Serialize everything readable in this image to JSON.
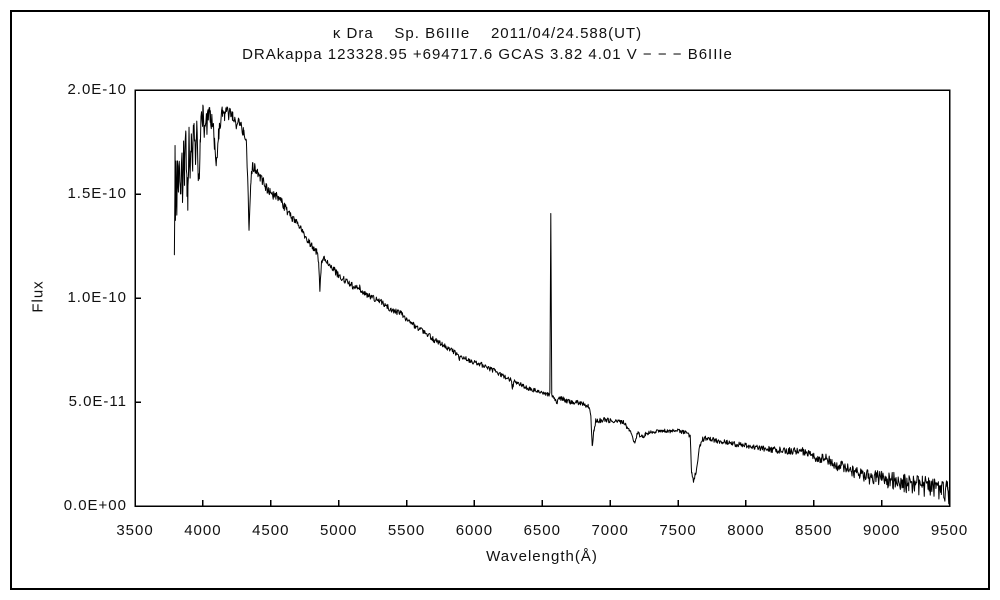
{
  "figure": {
    "title_line1": "κ Dra    Sp. B6IIIe    2011/04/24.588(UT)",
    "title_line2": "DRAkappa 123328.95 +694717.6 GCAS 3.82 4.01 V − − − B6IIIe"
  },
  "chart_data": {
    "type": "line",
    "title": "κ Dra    Sp. B6IIIe    2011/04/24.588(UT)",
    "subtitle": "DRAkappa 123328.95 +694717.6 GCAS 3.82 4.01 V − − − B6IIIe",
    "xlabel": "Wavelength(Å)",
    "ylabel": "Flux",
    "xlim": [
      3500,
      9500
    ],
    "ylim_labels": [
      "0.0E+00",
      "2.0E-10"
    ],
    "grid": false,
    "legend": "none",
    "line_color": "#000000",
    "x_ticks": [
      3500,
      4000,
      4500,
      5000,
      5500,
      6000,
      6500,
      7000,
      7500,
      8000,
      8500,
      9000,
      9500
    ],
    "x_tick_labels": [
      "3500",
      "4000",
      "4500",
      "5000",
      "5500",
      "6000",
      "6500",
      "7000",
      "7500",
      "8000",
      "8500",
      "9000",
      "9500"
    ],
    "y_ticks_flux_1e11": [
      0,
      5,
      10,
      15,
      20
    ],
    "y_tick_labels": [
      "0.0E+00",
      "5.0E-11",
      "1.0E-10",
      "1.5E-10",
      "2.0E-10"
    ],
    "flux_scale": "values below are flux × 1e-11; spectrum runs 3790–9500 Å",
    "series": [
      {
        "name": "kappa Dra spectrum",
        "points": [
          [
            3790,
            13.0
          ],
          [
            3795,
            16.9
          ],
          [
            3798,
            13.2
          ],
          [
            3803,
            16.4
          ],
          [
            3808,
            14.6
          ],
          [
            3813,
            16.6
          ],
          [
            3820,
            15.0
          ],
          [
            3828,
            16.9
          ],
          [
            3835,
            14.2
          ],
          [
            3842,
            17.0
          ],
          [
            3850,
            15.5
          ],
          [
            3858,
            17.3
          ],
          [
            3865,
            16.0
          ],
          [
            3875,
            17.5
          ],
          [
            3883,
            15.2
          ],
          [
            3889,
            14.8
          ],
          [
            3897,
            17.6
          ],
          [
            3905,
            16.4
          ],
          [
            3915,
            18.0
          ],
          [
            3925,
            16.8
          ],
          [
            3935,
            18.2
          ],
          [
            3945,
            17.0
          ],
          [
            3955,
            18.4
          ],
          [
            3962,
            16.2
          ],
          [
            3970,
            15.3
          ],
          [
            3980,
            17.8
          ],
          [
            3990,
            18.6
          ],
          [
            4000,
            18.9
          ],
          [
            4010,
            18.2
          ],
          [
            4020,
            18.8
          ],
          [
            4030,
            18.4
          ],
          [
            4040,
            18.9
          ],
          [
            4055,
            18.6
          ],
          [
            4070,
            18.3
          ],
          [
            4085,
            17.6
          ],
          [
            4101,
            16.3
          ],
          [
            4115,
            17.9
          ],
          [
            4130,
            18.6
          ],
          [
            4145,
            18.9
          ],
          [
            4160,
            18.7
          ],
          [
            4175,
            19.0
          ],
          [
            4190,
            18.8
          ],
          [
            4205,
            18.9
          ],
          [
            4220,
            18.7
          ],
          [
            4235,
            18.4
          ],
          [
            4250,
            18.2
          ],
          [
            4265,
            18.5
          ],
          [
            4280,
            18.3
          ],
          [
            4300,
            17.9
          ],
          [
            4320,
            17.3
          ],
          [
            4332,
            15.5
          ],
          [
            4340,
            13.0
          ],
          [
            4352,
            15.6
          ],
          [
            4368,
            16.4
          ],
          [
            4385,
            16.2
          ],
          [
            4400,
            16.0
          ],
          [
            4420,
            15.8
          ],
          [
            4450,
            15.5
          ],
          [
            4480,
            15.2
          ],
          [
            4510,
            14.9
          ],
          [
            4540,
            14.9
          ],
          [
            4570,
            14.7
          ],
          [
            4600,
            14.4
          ],
          [
            4630,
            14.1
          ],
          [
            4660,
            13.8
          ],
          [
            4690,
            13.6
          ],
          [
            4720,
            13.4
          ],
          [
            4750,
            13.0
          ],
          [
            4780,
            12.7
          ],
          [
            4810,
            12.4
          ],
          [
            4840,
            12.2
          ],
          [
            4853,
            11.8
          ],
          [
            4861,
            10.3
          ],
          [
            4872,
            11.6
          ],
          [
            4885,
            11.9
          ],
          [
            4900,
            11.9
          ],
          [
            4930,
            11.6
          ],
          [
            4960,
            11.4
          ],
          [
            5000,
            11.1
          ],
          [
            5040,
            10.9
          ],
          [
            5080,
            10.7
          ],
          [
            5120,
            10.5
          ],
          [
            5155,
            10.5
          ],
          [
            5170,
            10.2
          ],
          [
            5200,
            10.2
          ],
          [
            5250,
            10.0
          ],
          [
            5300,
            9.9
          ],
          [
            5350,
            9.6
          ],
          [
            5400,
            9.4
          ],
          [
            5450,
            9.3
          ],
          [
            5500,
            9.0
          ],
          [
            5550,
            8.7
          ],
          [
            5600,
            8.5
          ],
          [
            5650,
            8.3
          ],
          [
            5700,
            8.0
          ],
          [
            5750,
            7.8
          ],
          [
            5800,
            7.6
          ],
          [
            5850,
            7.4
          ],
          [
            5890,
            7.1
          ],
          [
            5920,
            7.2
          ],
          [
            5960,
            7.0
          ],
          [
            6000,
            6.9
          ],
          [
            6050,
            6.8
          ],
          [
            6100,
            6.6
          ],
          [
            6150,
            6.5
          ],
          [
            6200,
            6.3
          ],
          [
            6250,
            6.1
          ],
          [
            6270,
            6.05
          ],
          [
            6280,
            5.7
          ],
          [
            6295,
            6.0
          ],
          [
            6350,
            5.8
          ],
          [
            6400,
            5.65
          ],
          [
            6450,
            5.55
          ],
          [
            6500,
            5.45
          ],
          [
            6540,
            5.35
          ],
          [
            6556,
            5.4
          ],
          [
            6563,
            14.05
          ],
          [
            6570,
            5.3
          ],
          [
            6590,
            5.2
          ],
          [
            6605,
            4.95
          ],
          [
            6625,
            5.2
          ],
          [
            6650,
            5.15
          ],
          [
            6700,
            5.0
          ],
          [
            6750,
            5.0
          ],
          [
            6800,
            4.9
          ],
          [
            6840,
            4.8
          ],
          [
            6858,
            4.4
          ],
          [
            6868,
            2.9
          ],
          [
            6880,
            3.6
          ],
          [
            6895,
            4.15
          ],
          [
            6920,
            4.1
          ],
          [
            6960,
            4.15
          ],
          [
            7000,
            4.1
          ],
          [
            7050,
            4.1
          ],
          [
            7100,
            4.0
          ],
          [
            7140,
            3.7
          ],
          [
            7180,
            3.1
          ],
          [
            7205,
            3.5
          ],
          [
            7230,
            3.3
          ],
          [
            7260,
            3.45
          ],
          [
            7300,
            3.55
          ],
          [
            7350,
            3.6
          ],
          [
            7400,
            3.6
          ],
          [
            7450,
            3.6
          ],
          [
            7500,
            3.6
          ],
          [
            7540,
            3.55
          ],
          [
            7570,
            3.5
          ],
          [
            7590,
            3.3
          ],
          [
            7600,
            1.6
          ],
          [
            7615,
            1.2
          ],
          [
            7635,
            1.7
          ],
          [
            7655,
            2.7
          ],
          [
            7680,
            3.2
          ],
          [
            7700,
            3.25
          ],
          [
            7740,
            3.2
          ],
          [
            7780,
            3.15
          ],
          [
            7820,
            3.1
          ],
          [
            7860,
            3.05
          ],
          [
            7900,
            3.0
          ],
          [
            7950,
            2.95
          ],
          [
            8000,
            2.9
          ],
          [
            8050,
            2.85
          ],
          [
            8100,
            2.8
          ],
          [
            8150,
            2.75
          ],
          [
            8200,
            2.7
          ],
          [
            8250,
            2.68
          ],
          [
            8300,
            2.65
          ],
          [
            8350,
            2.65
          ],
          [
            8390,
            2.68
          ],
          [
            8430,
            2.6
          ],
          [
            8470,
            2.5
          ],
          [
            8500,
            2.35
          ],
          [
            8545,
            2.3
          ],
          [
            8580,
            2.3
          ],
          [
            8610,
            2.2
          ],
          [
            8650,
            2.0
          ],
          [
            8700,
            1.9
          ],
          [
            8750,
            1.8
          ],
          [
            8800,
            1.65
          ],
          [
            8830,
            1.6
          ],
          [
            8870,
            1.5
          ],
          [
            8900,
            1.4
          ],
          [
            8950,
            1.35
          ],
          [
            9000,
            1.3
          ],
          [
            9050,
            1.25
          ],
          [
            9100,
            1.2
          ],
          [
            9150,
            1.15
          ],
          [
            9200,
            1.05
          ],
          [
            9250,
            1.0
          ],
          [
            9300,
            0.95
          ],
          [
            9350,
            0.9
          ],
          [
            9400,
            0.8
          ],
          [
            9440,
            0.75
          ],
          [
            9470,
            0.6
          ],
          [
            9485,
            0.95
          ],
          [
            9495,
            0.5
          ],
          [
            9500,
            0.3
          ]
        ],
        "noise_amplitude_profile": [
          [
            3790,
            1.1
          ],
          [
            3900,
            0.9
          ],
          [
            4000,
            0.6
          ],
          [
            4150,
            0.35
          ],
          [
            4300,
            0.3
          ],
          [
            4500,
            0.22
          ],
          [
            4800,
            0.18
          ],
          [
            5200,
            0.15
          ],
          [
            6000,
            0.12
          ],
          [
            6500,
            0.1
          ],
          [
            7000,
            0.12
          ],
          [
            7400,
            0.1
          ],
          [
            7800,
            0.12
          ],
          [
            8200,
            0.15
          ],
          [
            8500,
            0.2
          ],
          [
            8800,
            0.3
          ],
          [
            9100,
            0.42
          ],
          [
            9400,
            0.55
          ],
          [
            9500,
            0.6
          ]
        ]
      }
    ]
  }
}
